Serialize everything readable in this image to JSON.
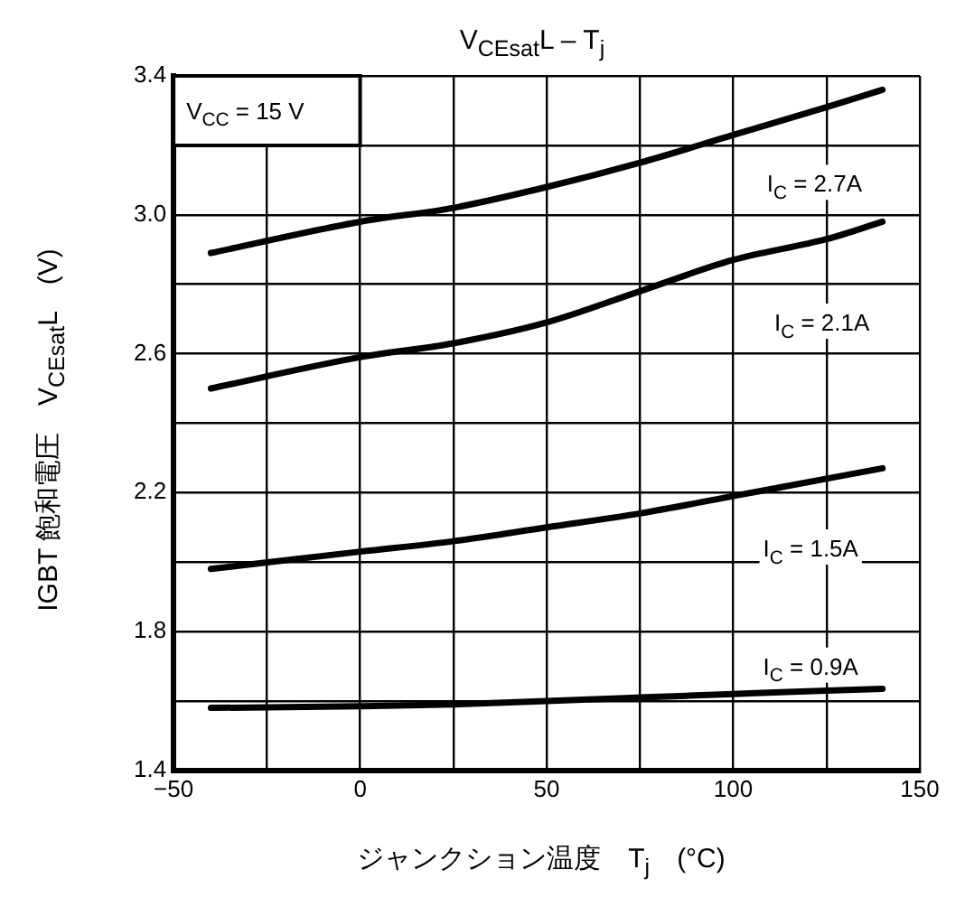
{
  "chart_data": {
    "type": "line",
    "title": "V$_{CEsat}$L – T$_{j}$",
    "xlabel": "ジャンクション温度　T$_{j}$　(°C)",
    "ylabel": "IGBT 飽和電圧　V$_{CEsat}$L　(V)",
    "x": [
      -40,
      0,
      25,
      50,
      75,
      100,
      125,
      140
    ],
    "series": [
      {
        "color": "#000000",
        "values": [
          2.89,
          2.98,
          3.02,
          3.08,
          3.15,
          3.23,
          3.31,
          3.36
        ]
      },
      {
        "color": "#000000",
        "values": [
          2.5,
          2.59,
          2.63,
          2.69,
          2.78,
          2.87,
          2.93,
          2.98
        ]
      },
      {
        "color": "#000000",
        "values": [
          1.98,
          2.03,
          2.06,
          2.1,
          2.14,
          2.19,
          2.24,
          2.27
        ]
      },
      {
        "color": "#000000",
        "values": [
          1.58,
          1.585,
          1.59,
          1.6,
          1.61,
          1.62,
          1.63,
          1.635
        ]
      }
    ],
    "xlim": [
      -50,
      150
    ],
    "xticks": [
      -50,
      {
        "value": -25,
        "label": null
      },
      0,
      {
        "value": 25,
        "label": null
      },
      50,
      {
        "value": 75,
        "label": null
      },
      100,
      {
        "value": 125,
        "label": null
      },
      150
    ],
    "ylim": [
      1.4,
      3.4
    ],
    "yticks": [
      1.4,
      {
        "value": 1.6,
        "label": null
      },
      1.8,
      {
        "value": 2.0,
        "label": null
      },
      2.2,
      {
        "value": 2.4,
        "label": null
      },
      2.6,
      {
        "value": 2.8,
        "label": null
      },
      {
        "value": 3,
        "label": "3.0"
      },
      {
        "value": 3.2,
        "label": null
      },
      3.4
    ],
    "grid": true,
    "legend": false,
    "marker": "none",
    "line_style": "solid",
    "annotations": [
      "V$_{CC}$ = 15 V",
      "I$_{C}$ = 2.7A",
      "I$_{C}$ = 2.1A",
      "I$_{C}$ = 1.5A",
      "I$_{C}$ = 0.9A"
    ]
  }
}
